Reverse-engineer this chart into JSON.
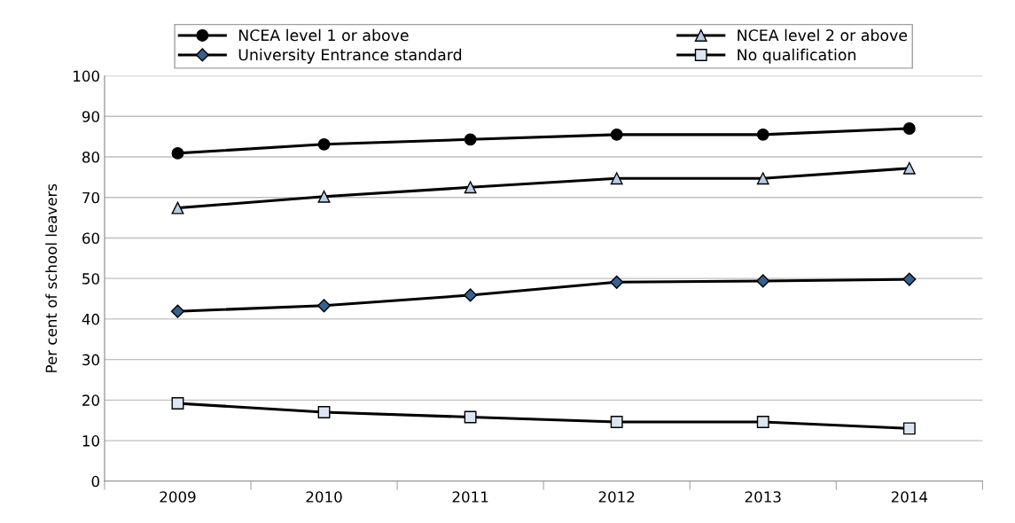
{
  "chart_data": {
    "type": "line",
    "ylabel": "Per cent of school leavers",
    "categories": [
      "2009",
      "2010",
      "2011",
      "2012",
      "2013",
      "2014"
    ],
    "series": [
      {
        "name": "NCEA level 1 or above",
        "color": "#000000",
        "marker": "circle",
        "values": [
          80.9,
          83.1,
          84.3,
          85.5,
          85.5,
          87.0
        ]
      },
      {
        "name": "NCEA level 2 or above",
        "color": "#b9cde5",
        "marker": "triangle",
        "values": [
          67.4,
          70.2,
          72.5,
          74.7,
          74.7,
          77.2
        ]
      },
      {
        "name": "University Entrance standard",
        "color": "#36608f",
        "marker": "diamond",
        "values": [
          41.9,
          43.3,
          45.9,
          49.1,
          49.4,
          49.8
        ]
      },
      {
        "name": "No qualification",
        "color": "#dce6f2",
        "marker": "square",
        "values": [
          19.2,
          17.0,
          15.8,
          14.6,
          14.6,
          13.0
        ]
      }
    ],
    "ylim": [
      0,
      100
    ],
    "yticks": [
      0,
      10,
      20,
      30,
      40,
      50,
      60,
      70,
      80,
      90,
      100
    ],
    "grid": "y",
    "legend": "top",
    "line_style": "solid"
  }
}
